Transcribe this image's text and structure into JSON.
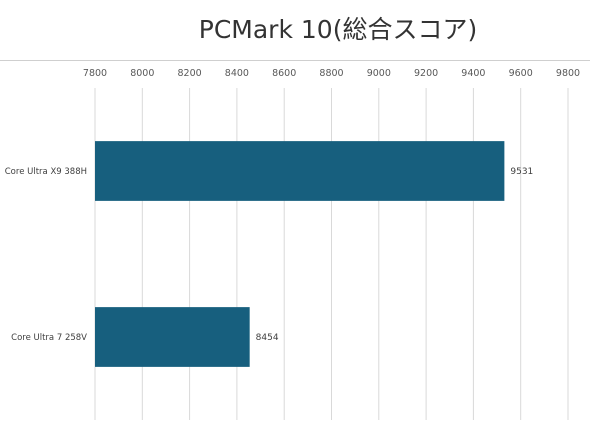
{
  "chart_data": {
    "type": "bar",
    "orientation": "horizontal",
    "title": "PCMark 10(総合スコア)",
    "xlabel": "",
    "ylabel": "",
    "categories": [
      "Core Ultra X9 388H",
      "Core Ultra 7 258V"
    ],
    "values": [
      9531,
      8454
    ],
    "data_labels": [
      "9531",
      "8454"
    ],
    "xlim": [
      7800,
      9800
    ],
    "x_ticks": [
      "7800",
      "8000",
      "8200",
      "8400",
      "8600",
      "8800",
      "9000",
      "9200",
      "9400",
      "9600",
      "9800"
    ],
    "grid": true,
    "axis_position": "top",
    "legend": "none",
    "bar_color": "#175f7e"
  }
}
